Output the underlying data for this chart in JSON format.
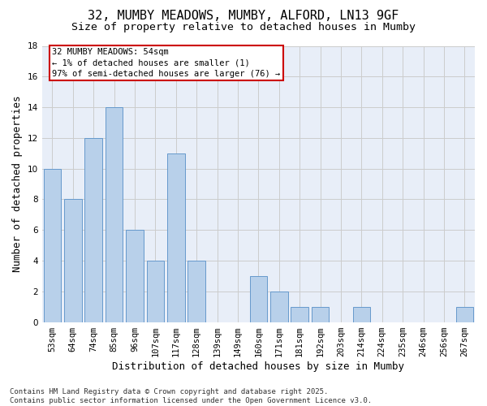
{
  "title1": "32, MUMBY MEADOWS, MUMBY, ALFORD, LN13 9GF",
  "title2": "Size of property relative to detached houses in Mumby",
  "xlabel": "Distribution of detached houses by size in Mumby",
  "ylabel": "Number of detached properties",
  "categories": [
    "53sqm",
    "64sqm",
    "74sqm",
    "85sqm",
    "96sqm",
    "107sqm",
    "117sqm",
    "128sqm",
    "139sqm",
    "149sqm",
    "160sqm",
    "171sqm",
    "181sqm",
    "192sqm",
    "203sqm",
    "214sqm",
    "224sqm",
    "235sqm",
    "246sqm",
    "256sqm",
    "267sqm"
  ],
  "values": [
    10,
    8,
    12,
    14,
    6,
    4,
    11,
    4,
    0,
    0,
    3,
    2,
    1,
    1,
    0,
    1,
    0,
    0,
    0,
    0,
    1
  ],
  "bar_color": "#b8d0ea",
  "bar_edge_color": "#6699cc",
  "annotation_text_line1": "32 MUMBY MEADOWS: 54sqm",
  "annotation_text_line2": "← 1% of detached houses are smaller (1)",
  "annotation_text_line3": "97% of semi-detached houses are larger (76) →",
  "annotation_box_color": "#cc0000",
  "ylim": [
    0,
    18
  ],
  "yticks": [
    0,
    2,
    4,
    6,
    8,
    10,
    12,
    14,
    16,
    18
  ],
  "footer": "Contains HM Land Registry data © Crown copyright and database right 2025.\nContains public sector information licensed under the Open Government Licence v3.0.",
  "bg_color": "#e8eef8",
  "grid_color": "#cccccc",
  "title1_fontsize": 11,
  "title2_fontsize": 9.5,
  "xlabel_fontsize": 9,
  "ylabel_fontsize": 9,
  "tick_fontsize": 7.5,
  "annotation_fontsize": 7.5,
  "footer_fontsize": 6.5
}
